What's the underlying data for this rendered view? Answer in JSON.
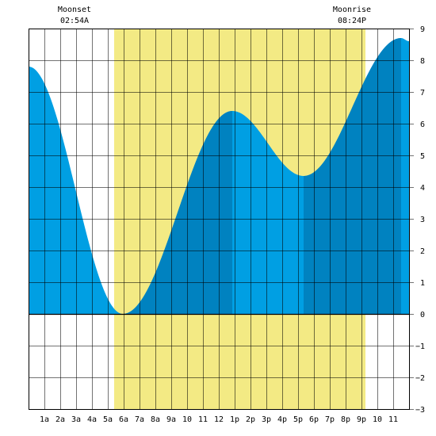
{
  "chart_data": {
    "type": "area",
    "x_unit": "hour of day",
    "xlim": [
      0,
      24
    ],
    "ylim": [
      -3,
      9
    ],
    "y_ticks": [
      9,
      8,
      7,
      6,
      5,
      4,
      3,
      2,
      1,
      0,
      -1,
      -2,
      -3
    ],
    "x_tick_labels": [
      {
        "hour": 1,
        "label": "1a"
      },
      {
        "hour": 2,
        "label": "2a"
      },
      {
        "hour": 3,
        "label": "3a"
      },
      {
        "hour": 4,
        "label": "4a"
      },
      {
        "hour": 5,
        "label": "5a"
      },
      {
        "hour": 6,
        "label": "6a"
      },
      {
        "hour": 7,
        "label": "7a"
      },
      {
        "hour": 8,
        "label": "8a"
      },
      {
        "hour": 9,
        "label": "9a"
      },
      {
        "hour": 10,
        "label": "10"
      },
      {
        "hour": 11,
        "label": "11"
      },
      {
        "hour": 12,
        "label": "12"
      },
      {
        "hour": 13,
        "label": "1p"
      },
      {
        "hour": 14,
        "label": "2p"
      },
      {
        "hour": 15,
        "label": "3p"
      },
      {
        "hour": 16,
        "label": "4p"
      },
      {
        "hour": 17,
        "label": "5p"
      },
      {
        "hour": 18,
        "label": "6p"
      },
      {
        "hour": 19,
        "label": "7p"
      },
      {
        "hour": 20,
        "label": "8p"
      },
      {
        "hour": 21,
        "label": "9p"
      },
      {
        "hour": 22,
        "label": "10"
      },
      {
        "hour": 23,
        "label": "11"
      }
    ],
    "daylight": {
      "start": 5.4,
      "end": 21.25
    },
    "tide_extremes": [
      {
        "hour": 0.0,
        "height": 7.8
      },
      {
        "hour": 5.95,
        "height": 0.0
      },
      {
        "hour": 12.85,
        "height": 6.4
      },
      {
        "hour": 17.35,
        "height": 4.35
      },
      {
        "hour": 23.5,
        "height": 8.7
      },
      {
        "hour": 24.0,
        "height": 8.6
      }
    ],
    "dark_bands": [
      {
        "start": 6.0,
        "end": 12.85
      },
      {
        "start": 17.35,
        "end": 23.5
      }
    ],
    "grid": true,
    "colors": {
      "daylight": "#f3ea84",
      "tide_light": "#009fe3",
      "tide_dark": "#0082c0",
      "grid": "#000000",
      "zero_line": "#000000"
    },
    "annotations": [
      {
        "id": "moonset",
        "title": "Moonset",
        "time": "02:54A",
        "hour": 2.9
      },
      {
        "id": "moonrise",
        "title": "Moonrise",
        "time": "08:24P",
        "hour": 20.4
      }
    ]
  }
}
